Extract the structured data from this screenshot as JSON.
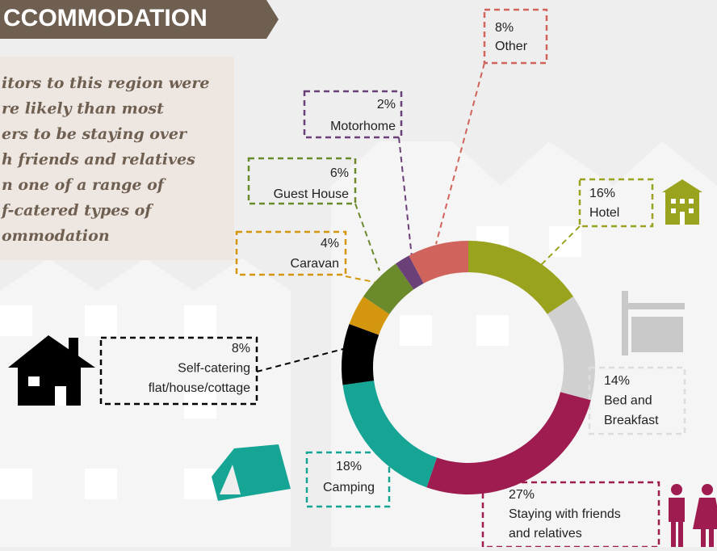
{
  "banner": "CCOMMODATION",
  "intro": [
    "itors to this region were",
    "re likely than most",
    "ers to be staying over",
    "h friends and relatives",
    "n one of a range of",
    "f-catered types of",
    "ommodation"
  ],
  "chart_data": {
    "type": "donut",
    "categories": [
      [
        "Hotel"
      ],
      [
        "Bed and",
        "Breakfast"
      ],
      [
        "Staying with friends",
        "and relatives"
      ],
      [
        "Camping"
      ],
      [
        "Self-catering",
        "flat/house/cottage"
      ],
      [
        "Caravan"
      ],
      [
        "Guest House"
      ],
      [
        "Motorhome"
      ],
      [
        "Other"
      ]
    ],
    "values": [
      16,
      14,
      27,
      18,
      8,
      4,
      6,
      2,
      8
    ],
    "value_labels": [
      "16%",
      "14%",
      "27%",
      "18%",
      "8%",
      "4%",
      "6%",
      "2%",
      "8%"
    ],
    "colors": [
      "#9aa31e",
      "#d0d0d0",
      "#9e1c50",
      "#16a594",
      "#000000",
      "#d4960c",
      "#6a8a2c",
      "#6b3f77",
      "#d0645c"
    ]
  }
}
